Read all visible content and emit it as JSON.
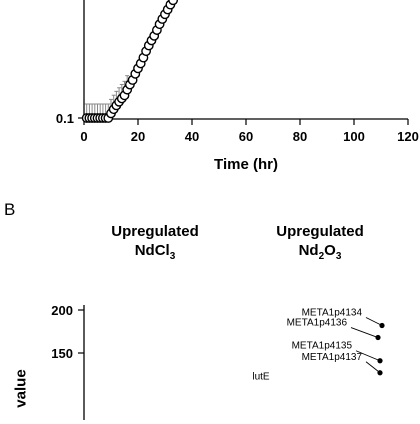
{
  "chart_data": [
    {
      "type": "scatter",
      "panel": "",
      "xlabel": "Time (hr)",
      "ylabel": "",
      "xlim": [
        0,
        120
      ],
      "ylim_visible_bottom": 0.1,
      "yscale": "log",
      "x_ticks": [
        "0",
        "20",
        "40",
        "60",
        "80",
        "100",
        "120"
      ],
      "y_ticks": [
        "0.1"
      ],
      "series": [
        {
          "x": [
            1,
            2,
            3,
            4,
            5,
            6,
            7,
            8,
            9,
            10,
            11,
            12,
            13,
            14,
            15,
            16,
            17,
            18,
            19,
            20,
            21,
            22,
            23,
            24,
            25,
            26,
            27,
            28,
            29,
            30,
            31,
            32,
            33
          ],
          "y": [
            0.1,
            0.1,
            0.1,
            0.1,
            0.1,
            0.1,
            0.1,
            0.1,
            0.1,
            0.11,
            0.12,
            0.13,
            0.14,
            0.15,
            0.16,
            0.18,
            0.2,
            0.22,
            0.25,
            0.28,
            0.31,
            0.35,
            0.4,
            0.45,
            0.5,
            0.55,
            0.62,
            0.7,
            0.78,
            0.86,
            0.95,
            1.05,
            1.15
          ]
        }
      ]
    },
    {
      "type": "scatter",
      "panel": "B",
      "column_headers": [
        {
          "pre": "Upregulated",
          "main": "NdCl",
          "sub": "3",
          "tail": ""
        },
        {
          "pre": "Upregulated",
          "main": "Nd",
          "sub": "2",
          "tail": "O",
          "sub2": "3"
        }
      ],
      "ylabel": "value",
      "y_ticks": [
        "200",
        "150"
      ],
      "ylim_visible": [
        108,
        210
      ],
      "points": [
        {
          "label": "META1p4134",
          "y": 182
        },
        {
          "label": "META1p4136",
          "y": 168
        },
        {
          "label": "META1p4135",
          "y": 141
        },
        {
          "label": "META1p4137",
          "y": 127
        },
        {
          "label": "lutE",
          "y": 110
        }
      ]
    }
  ],
  "colors": {
    "ink": "#000000",
    "marker_fill": "#ffffff",
    "error_bar": "#888888"
  }
}
